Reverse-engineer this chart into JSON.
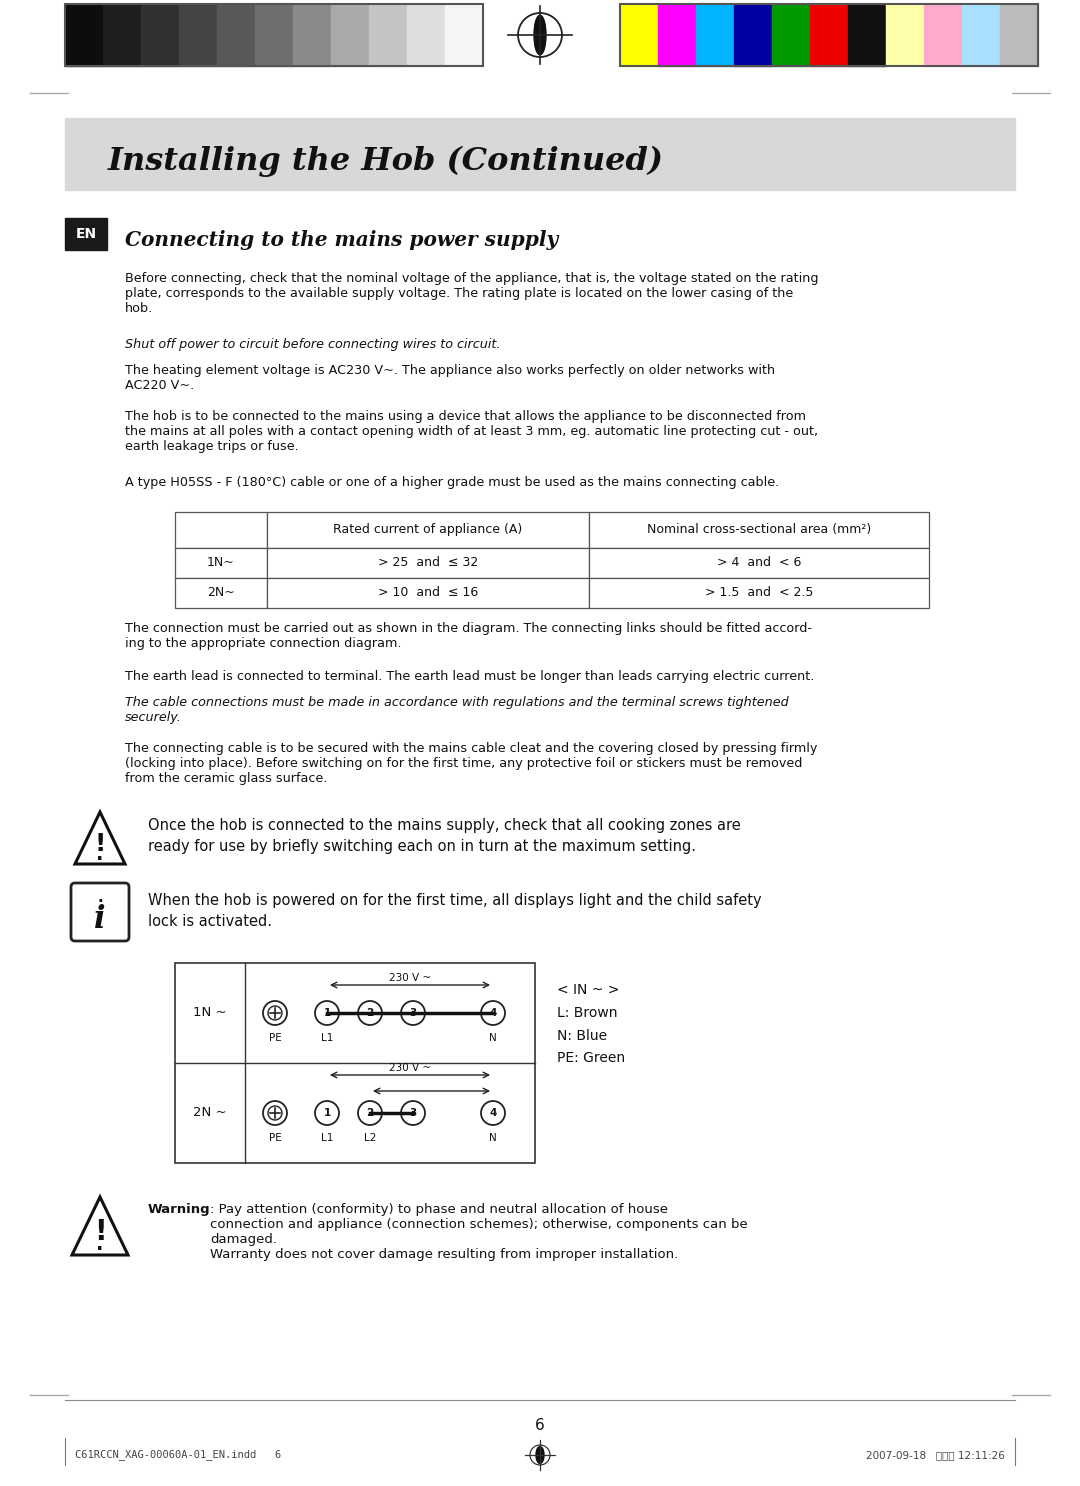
{
  "page_bg": "#ffffff",
  "header_bar_color": "#d8d8d8",
  "header_title": "Installing the Hob (Continued)",
  "section_title": "Connecting to the mains power supply",
  "en_box_color": "#1a1a1a",
  "en_text": "EN",
  "body_text_0": "Before connecting, check that the nominal voltage of the appliance, that is, the voltage stated on the rating\nplate, corresponds to the available supply voltage. The rating plate is located on the lower casing of the\nhob.",
  "body_text_1": "Shut off power to circuit before connecting wires to circuit.",
  "body_text_2": "The heating element voltage is AC230 V~. The appliance also works perfectly on older networks with\nAC220 V~.",
  "body_text_3": "The hob is to be connected to the mains using a device that allows the appliance to be disconnected from\nthe mains at all poles with a contact opening width of at least 3 mm, eg. automatic line protecting cut - out,\nearth leakage trips or fuse.",
  "body_text_4": "A type H05SS - F (180°C) cable or one of a higher grade must be used as the mains connecting cable.",
  "table_col1": "Rated current of appliance (A)",
  "table_col2": "Nominal cross-sectional area (mm²)",
  "table_row1": [
    "1N~",
    "> 25  and  ≤ 32",
    "> 4  and  < 6"
  ],
  "table_row2": [
    "2N~",
    "> 10  and  ≤ 16",
    "> 1.5  and  < 2.5"
  ],
  "post_text_0": "The connection must be carried out as shown in the diagram. The connecting links should be fitted accord-\ning to the appropriate connection diagram.",
  "post_text_1": "The earth lead is connected to terminal. The earth lead must be longer than leads carrying electric current.",
  "post_text_2": "The cable connections must be made in accordance with regulations and the terminal screws tightened\nsecurely.",
  "post_text_3": "The connecting cable is to be secured with the mains cable cleat and the covering closed by pressing firmly\n(locking into place). Before switching on for the first time, any protective foil or stickers must be removed\nfrom the ceramic glass surface.",
  "warning1_text": "Once the hob is connected to the mains supply, check that all cooking zones are\nready for use by briefly switching each on in turn at the maximum setting.",
  "info_text": "When the hob is powered on for the first time, all displays light and the child safety\nlock is activated.",
  "diag_voltage": "230 V ~",
  "diag_1n": "1N ~",
  "diag_2n": "2N ~",
  "diag_labels_1n": [
    "PE",
    "L1",
    "N"
  ],
  "diag_labels_2n": [
    "PE",
    "L1",
    "L2",
    "N"
  ],
  "legend_text": "< IN ~ >\nL: Brown\nN: Blue\nPE: Green",
  "warning2_bold": "Warning",
  "warning2_text": ": Pay attention (conformity) to phase and neutral allocation of house\nconnection and appliance (connection schemes); otherwise, components can be\ndamaged.\nWarranty does not cover damage resulting from improper installation.",
  "page_number": "6",
  "footer_left": "C61RCCN_XAG-00060A-01_EN.indd   6",
  "footer_right": "2007-09-18   소파트 12:11:26",
  "bar_left_colors": [
    "#0d0d0d",
    "#1e1e1e",
    "#303030",
    "#444444",
    "#585858",
    "#6e6e6e",
    "#8a8a8a",
    "#aaaaaa",
    "#c4c4c4",
    "#dedede",
    "#f5f5f5"
  ],
  "bar_right_colors": [
    "#ffff00",
    "#ff00ff",
    "#00b4ff",
    "#0000a0",
    "#009900",
    "#ee0000",
    "#111111",
    "#ffffaa",
    "#ffaacc",
    "#aae0ff",
    "#bbbbbb"
  ],
  "bar_border": "#555555",
  "text_color": "#111111",
  "margin_line_color": "#aaaaaa"
}
